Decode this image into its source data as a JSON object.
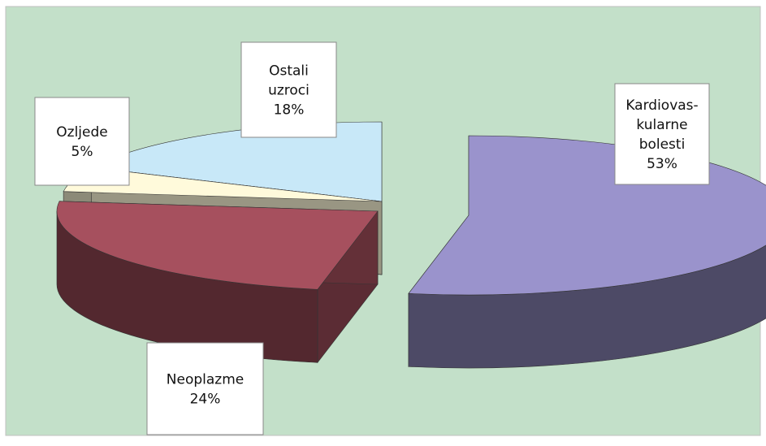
{
  "chart_data": {
    "type": "pie",
    "style": "3d-exploded",
    "categories": [
      "Kardiovaskularne bolesti",
      "Neoplazme",
      "Ozljede",
      "Ostali uzroci"
    ],
    "values": [
      53,
      24,
      5,
      18
    ],
    "unit": "%",
    "labels": [
      {
        "lines": [
          "Kardiovas-",
          "kularne",
          "bolesti",
          "53%"
        ]
      },
      {
        "lines": [
          "Neoplazme",
          "24%"
        ]
      },
      {
        "lines": [
          "Ozljede",
          "5%"
        ]
      },
      {
        "lines": [
          "Ostali",
          "uzroci",
          "18%"
        ]
      }
    ],
    "colors": {
      "background": "#c3e0c9",
      "slices": [
        "#9a93cc",
        "#a6505e",
        "#fffadb",
        "#c8e8f8"
      ]
    },
    "legend": "none"
  }
}
